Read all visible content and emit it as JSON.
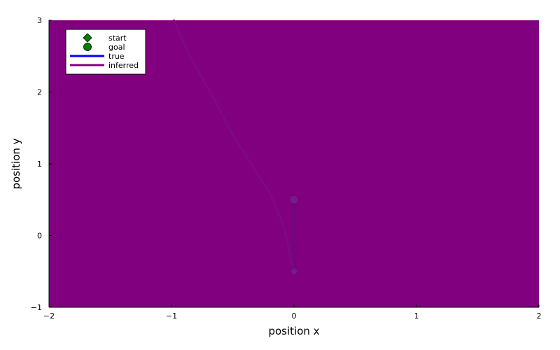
{
  "chart_data": {
    "type": "line",
    "title": "",
    "xlabel": "position x",
    "ylabel": "position y",
    "xlim": [
      -2,
      2
    ],
    "ylim": [
      -1,
      3
    ],
    "xticks": [
      -2,
      -1,
      0,
      1,
      2
    ],
    "yticks": [
      -1,
      0,
      1,
      2,
      3
    ],
    "xtick_labels": [
      "−2",
      "−1",
      "0",
      "1",
      "2"
    ],
    "ytick_labels": [
      "−1",
      "0",
      "1",
      "2",
      "3"
    ],
    "grid": false,
    "background_color": "#800080",
    "legend": {
      "placement": "top-left",
      "entries": [
        {
          "label": "start",
          "marker": "diamond",
          "color": "#008000"
        },
        {
          "label": "goal",
          "marker": "circle",
          "color": "#008000"
        },
        {
          "label": "true",
          "marker": "line",
          "color": "#0000ff"
        },
        {
          "label": "inferred",
          "marker": "line",
          "color": "#800080"
        }
      ]
    },
    "points": {
      "start": {
        "x": 0.0,
        "y": -0.5
      },
      "goal": {
        "x": 0.0,
        "y": 0.5
      }
    },
    "series": [
      {
        "name": "inferred",
        "color": "#7a0a8a",
        "x": [
          0.0,
          -0.03,
          -0.05,
          -0.1,
          -0.2,
          -0.35,
          -0.5,
          -0.62,
          -0.75,
          -0.85,
          -0.93,
          -0.98
        ],
        "y": [
          -0.5,
          -0.3,
          -0.1,
          0.2,
          0.6,
          1.0,
          1.4,
          1.8,
          2.2,
          2.5,
          2.8,
          3.0
        ]
      },
      {
        "name": "true",
        "color": "#6a0a7a",
        "x": [
          0.0,
          0.0,
          0.0
        ],
        "y": [
          -0.5,
          0.0,
          0.5
        ]
      }
    ]
  }
}
